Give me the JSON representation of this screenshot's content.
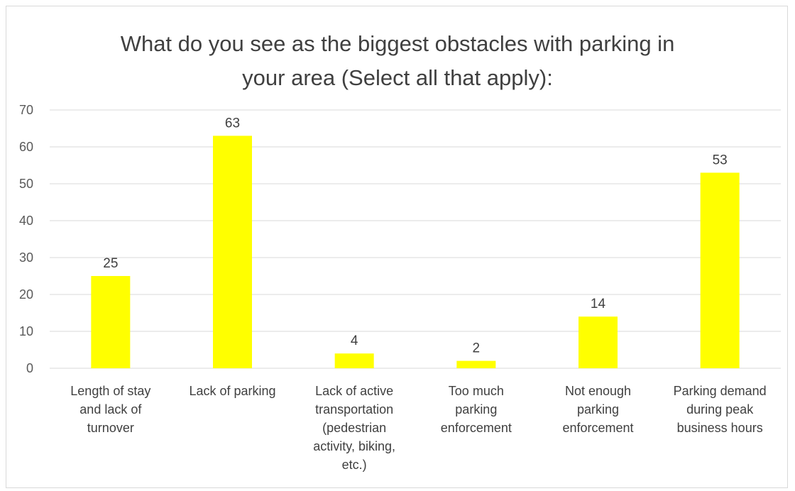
{
  "chart_data": {
    "type": "bar",
    "title_lines": [
      "What do you see as the biggest obstacles with parking in",
      "your area (Select all that apply):"
    ],
    "categories": [
      [
        "Length of stay",
        "and lack of",
        "turnover"
      ],
      [
        "Lack of parking"
      ],
      [
        "Lack of active",
        "transportation",
        "(pedestrian",
        "activity, biking,",
        "etc.)"
      ],
      [
        "Too much",
        "parking",
        "enforcement"
      ],
      [
        "Not enough",
        "parking",
        "enforcement"
      ],
      [
        "Parking demand",
        "during peak",
        "business hours"
      ]
    ],
    "values": [
      25,
      63,
      4,
      2,
      14,
      53
    ],
    "ylim": [
      0,
      70
    ],
    "yticks": [
      0,
      10,
      20,
      30,
      40,
      50,
      60,
      70
    ],
    "grid": true,
    "legend": "none",
    "bar_color": "#ffff00",
    "grid_color": "#d9d9d9"
  }
}
